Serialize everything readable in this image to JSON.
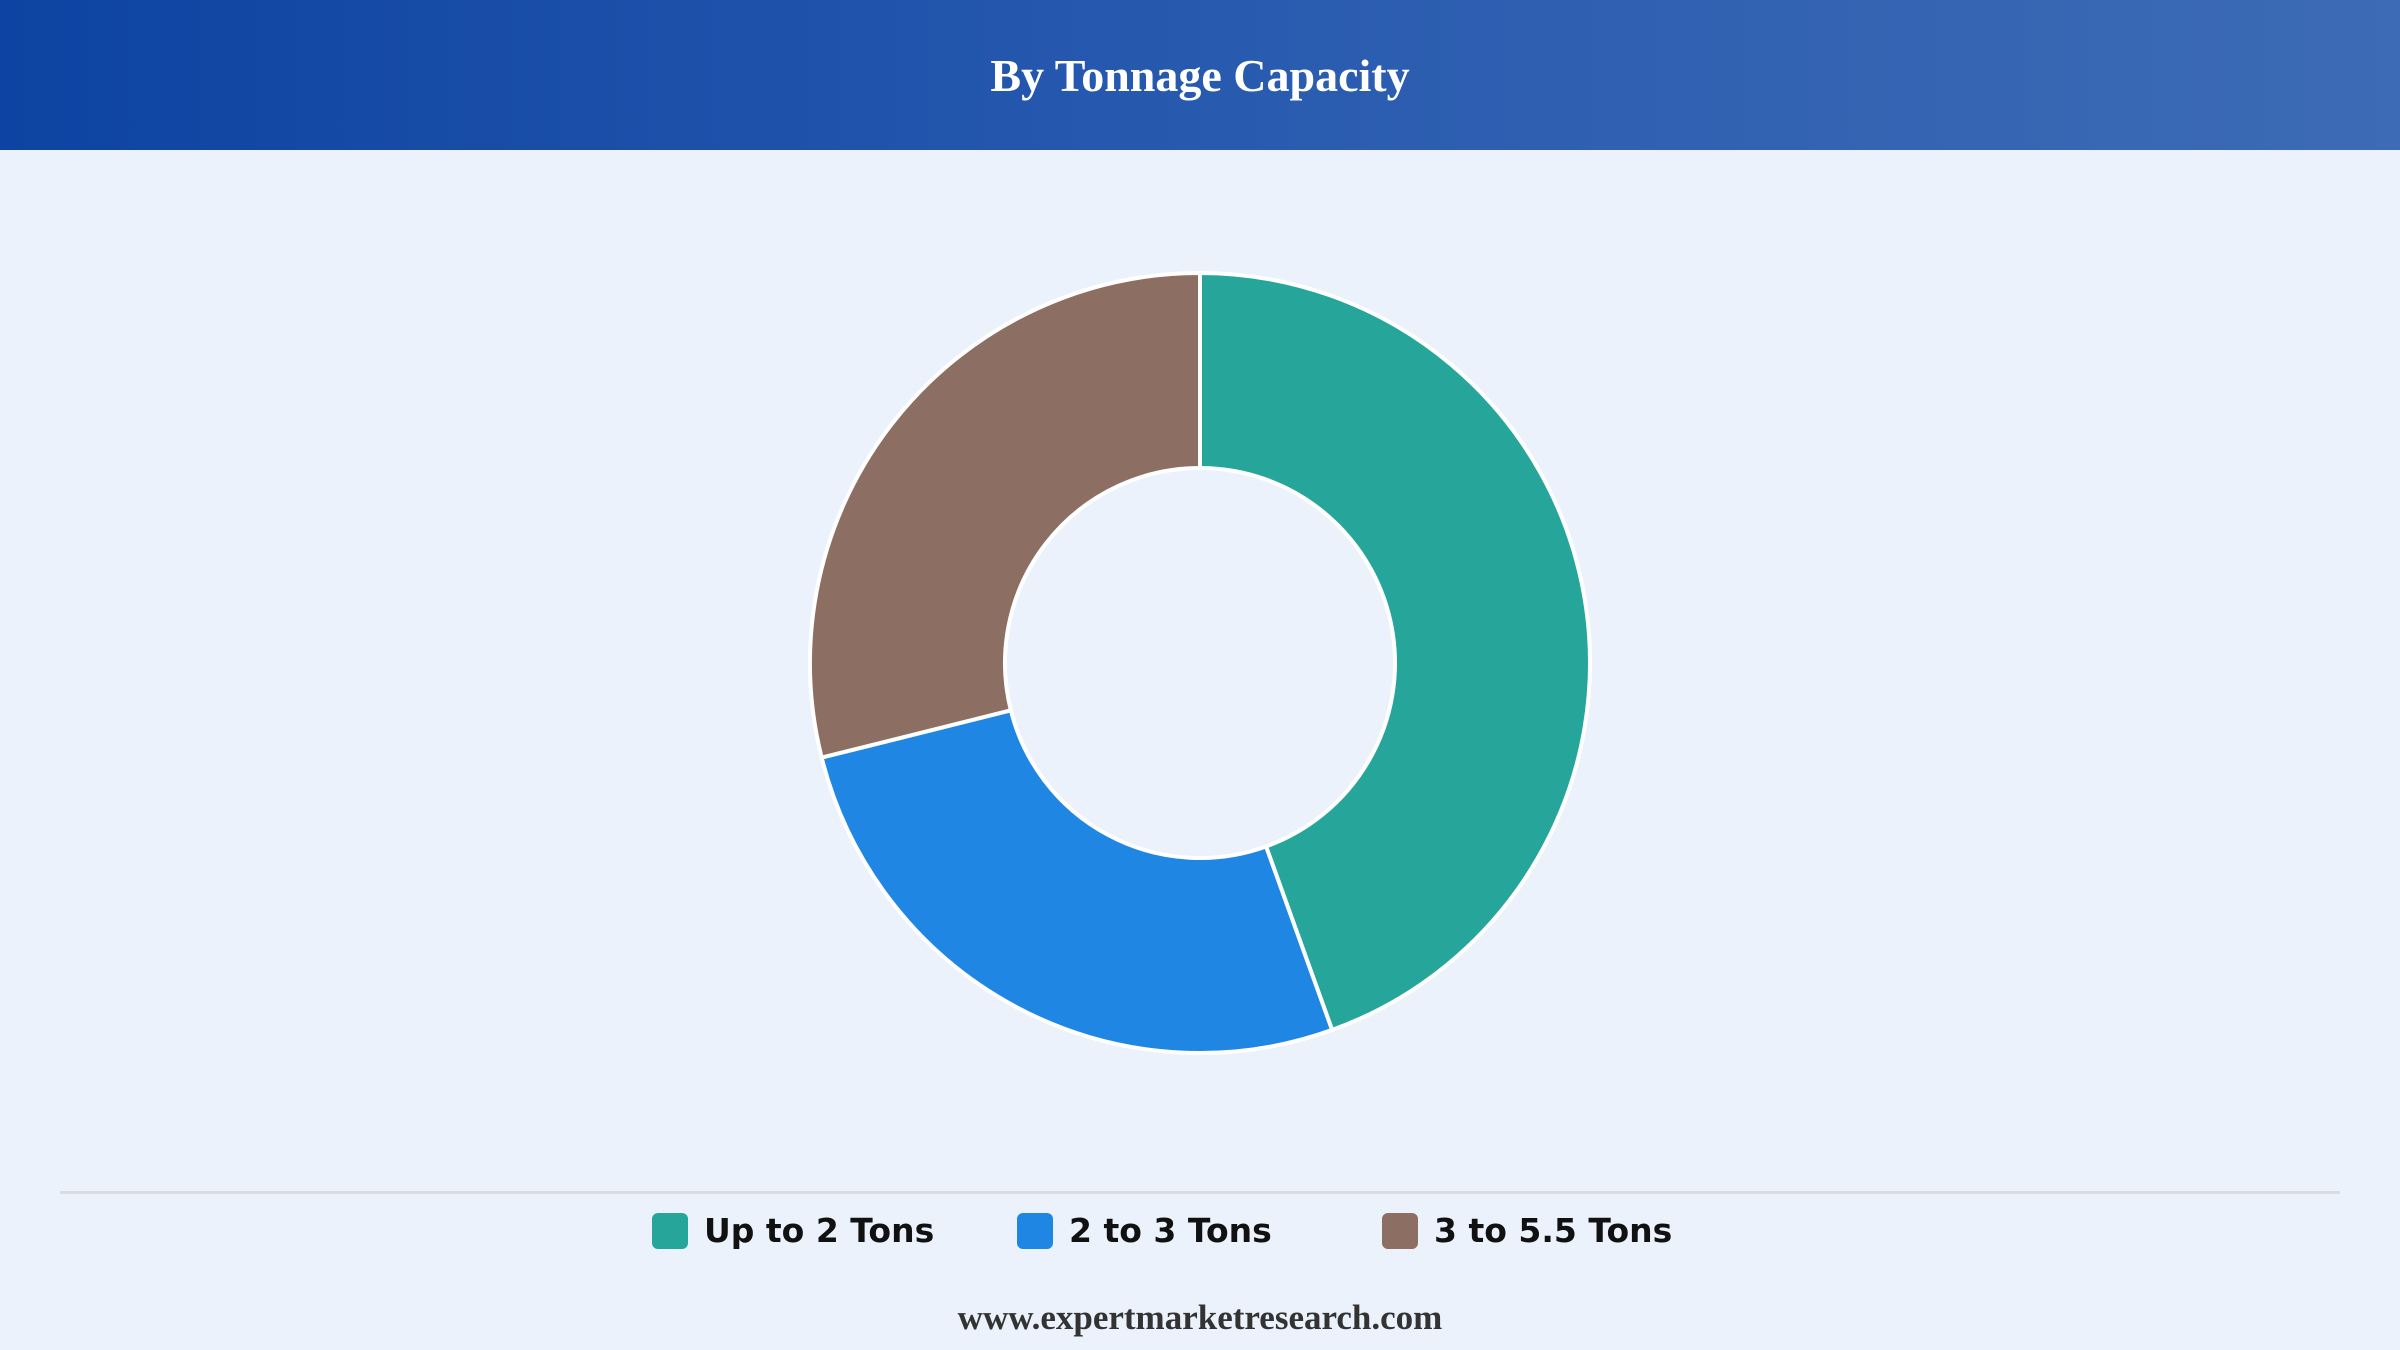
{
  "header": {
    "title": "By Tonnage Capacity"
  },
  "chart_data": {
    "type": "pie",
    "variant": "donut",
    "title": "By Tonnage Capacity",
    "categories": [
      "Up to 2 Tons",
      "2 to 3 Tons",
      "3 to 5.5 Tons"
    ],
    "values": [
      44.5,
      26.6,
      28.9
    ],
    "colors": [
      "#26a69a",
      "#1f86e3",
      "#8d6e63"
    ],
    "legend_position": "bottom"
  },
  "legend": {
    "items": [
      {
        "label": "Up to 2 Tons",
        "color": "#26a69a"
      },
      {
        "label": "2 to 3 Tons",
        "color": "#1f86e3"
      },
      {
        "label": "3 to 5.5 Tons",
        "color": "#8d6e63"
      }
    ]
  },
  "footer": {
    "source": "www.expertmarketresearch.com"
  }
}
